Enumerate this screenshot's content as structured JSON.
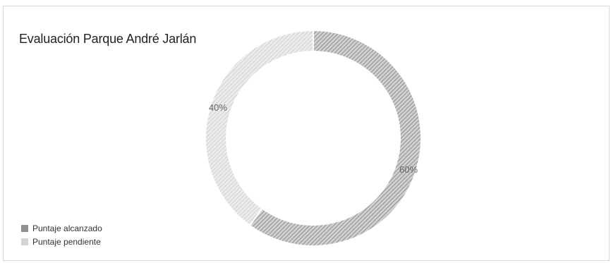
{
  "chart_data": {
    "type": "pie",
    "title": "Evaluación Parque André Jarlán",
    "donut": true,
    "categories": [
      "Puntaje alcanzado",
      "Puntaje pendiente"
    ],
    "values": [
      60,
      40
    ],
    "data_labels": [
      "60%",
      "40%"
    ],
    "colors": [
      "#8f8f8f",
      "#d4d4d4"
    ],
    "legend_position": "bottom-left"
  }
}
